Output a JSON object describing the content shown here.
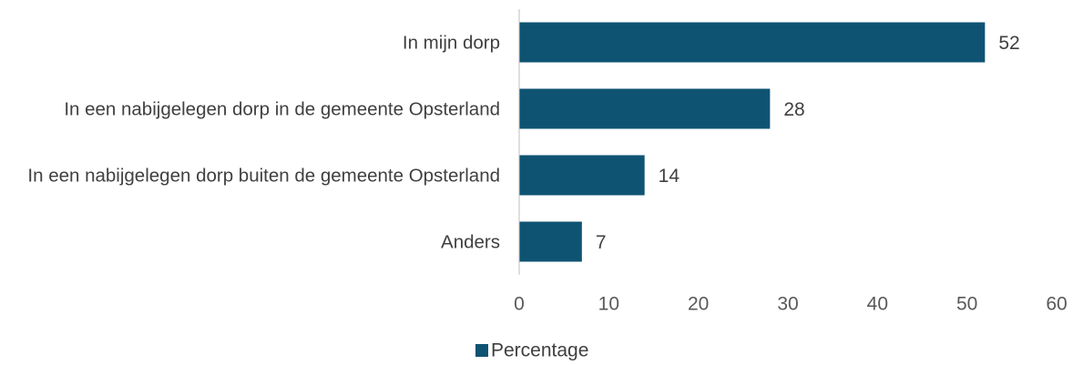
{
  "chart_data": {
    "type": "bar",
    "orientation": "horizontal",
    "categories": [
      "In mijn dorp",
      "In een nabijgelegen dorp in de gemeente Opsterland",
      "In een nabijgelegen dorp buiten de gemeente Opsterland",
      "Anders"
    ],
    "series": [
      {
        "name": "Percentage",
        "color": "#0f5373",
        "values": [
          52,
          28,
          14,
          7
        ]
      }
    ],
    "xlim": [
      0,
      60
    ],
    "xticks": [
      0,
      10,
      20,
      30,
      40,
      50,
      60
    ],
    "grid": false,
    "legend": "bottom"
  }
}
